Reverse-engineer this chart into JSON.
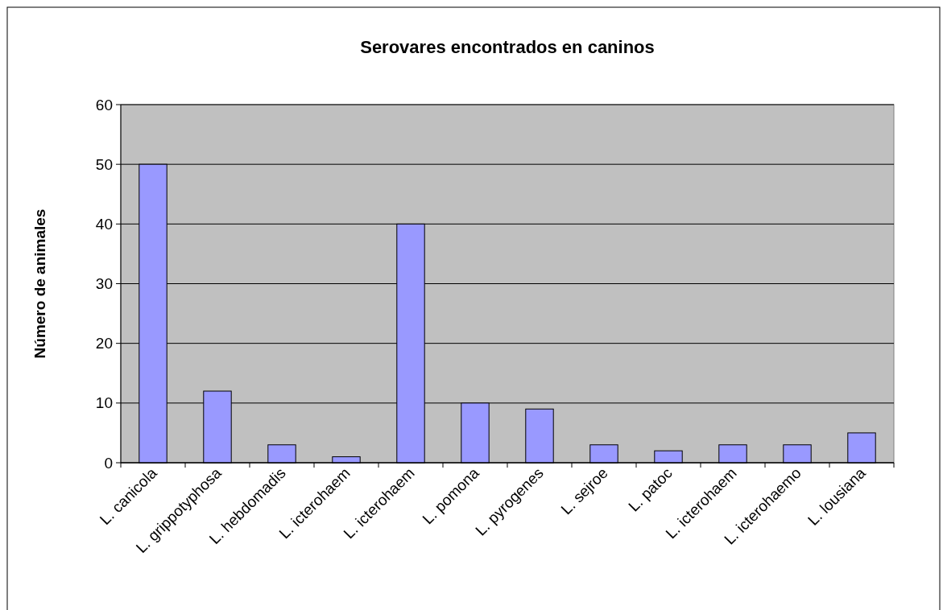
{
  "chart_data": {
    "type": "bar",
    "title": "Serovares encontrados en caninos",
    "ylabel": "Número de animales",
    "categories": [
      "L. canicola",
      "L. grippotyphosa",
      "L. hebdomadis",
      "L. icterohaem",
      "L. icterohaem",
      "L. pomona",
      "L. pyrogenes",
      "L. sejroe",
      "L. patoc",
      "L. icterohaem",
      "L. icterohaemo",
      "L. lousiana"
    ],
    "values": [
      50,
      12,
      3,
      1,
      40,
      10,
      9,
      3,
      2,
      3,
      3,
      5
    ],
    "color": "#9999ff",
    "ylim": [
      0,
      60
    ],
    "yticks": [
      0,
      10,
      20,
      30,
      40,
      50,
      60
    ],
    "grid": "y"
  }
}
